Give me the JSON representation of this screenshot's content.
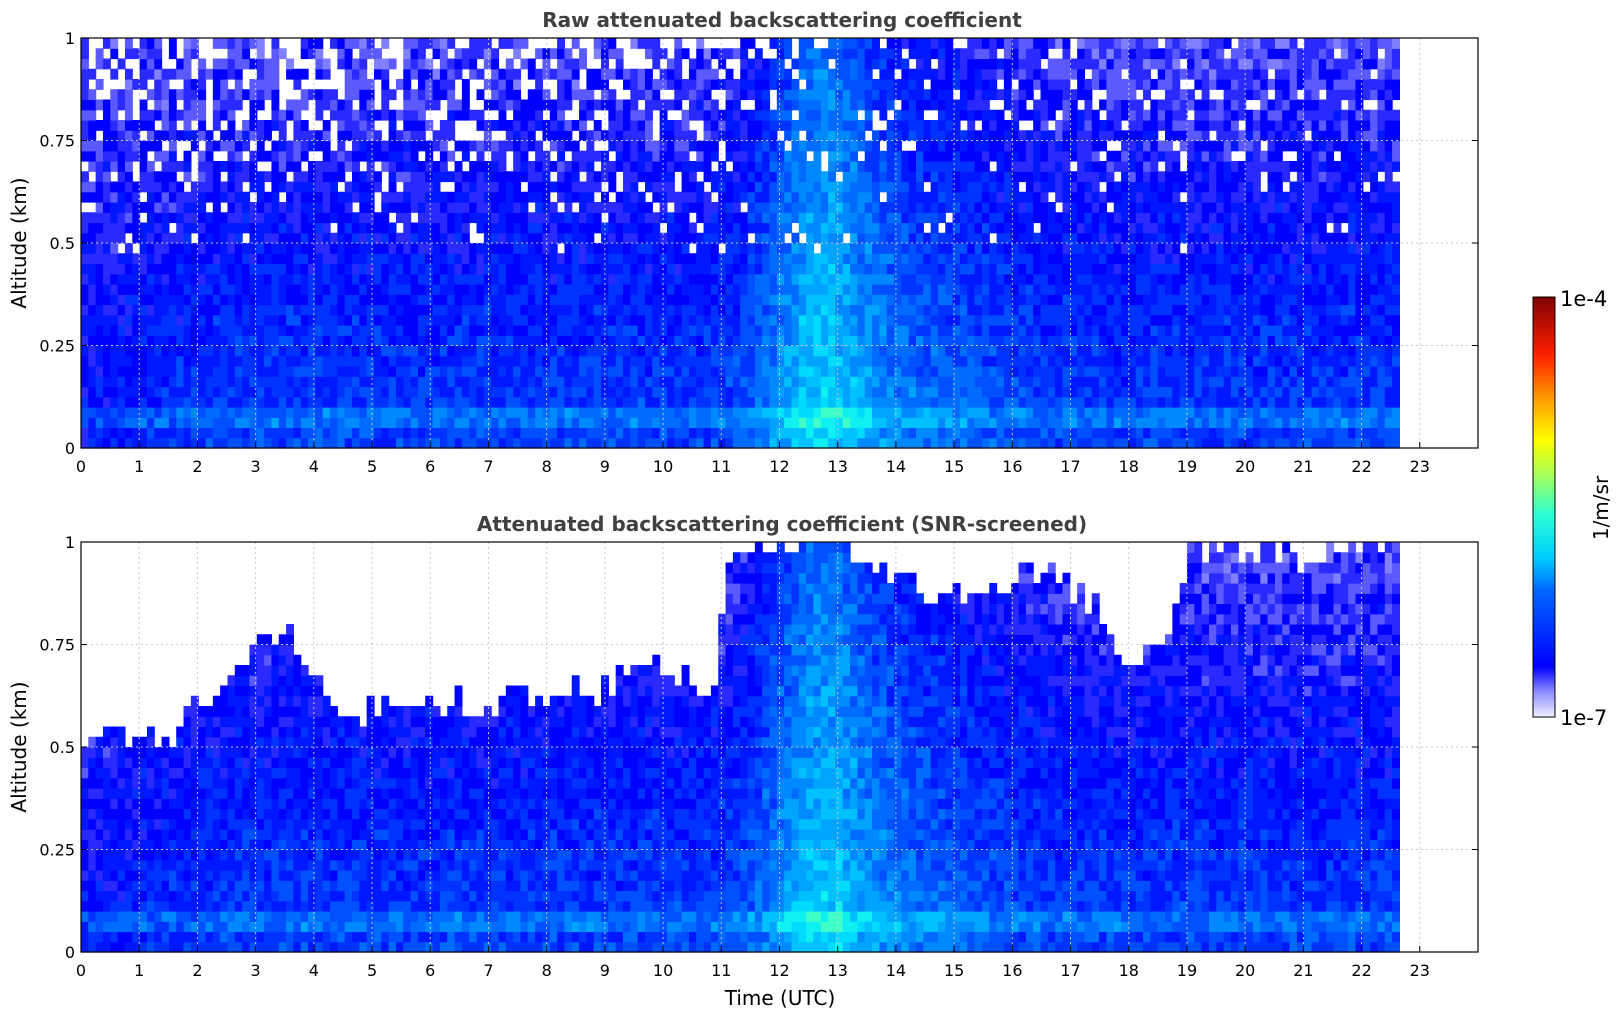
{
  "chart_data": [
    {
      "type": "heatmap",
      "title": "Raw attenuated backscattering coefficient",
      "xlabel": "",
      "ylabel": "Altitude (km)",
      "xlim": [
        0,
        24
      ],
      "ylim": [
        0,
        1
      ],
      "x_ticks": [
        "0",
        "1",
        "2",
        "3",
        "4",
        "5",
        "6",
        "7",
        "8",
        "9",
        "10",
        "11",
        "12",
        "13",
        "14",
        "15",
        "16",
        "17",
        "18",
        "19",
        "20",
        "21",
        "22",
        "23"
      ],
      "y_ticks": [
        "0",
        "0.25",
        "0.5",
        "0.75",
        "1"
      ],
      "data_end_time": 22.65,
      "screened": false,
      "grid": true
    },
    {
      "type": "heatmap",
      "title": "Attenuated backscattering coefficient (SNR-screened)",
      "xlabel": "Time (UTC)",
      "ylabel": "Altitude (km)",
      "xlim": [
        0,
        24
      ],
      "ylim": [
        0,
        1
      ],
      "x_ticks": [
        "0",
        "1",
        "2",
        "3",
        "4",
        "5",
        "6",
        "7",
        "8",
        "9",
        "10",
        "11",
        "12",
        "13",
        "14",
        "15",
        "16",
        "17",
        "18",
        "19",
        "20",
        "21",
        "22",
        "23"
      ],
      "y_ticks": [
        "0",
        "0.25",
        "0.5",
        "0.75",
        "1"
      ],
      "data_end_time": 22.65,
      "screened": true,
      "grid": true,
      "signal_top_km": [
        [
          0,
          0.52
        ],
        [
          0.5,
          0.55
        ],
        [
          1,
          0.5
        ],
        [
          1.5,
          0.52
        ],
        [
          2,
          0.6
        ],
        [
          2.5,
          0.65
        ],
        [
          3,
          0.72
        ],
        [
          3.5,
          0.75
        ],
        [
          4,
          0.68
        ],
        [
          4.5,
          0.55
        ],
        [
          5,
          0.6
        ],
        [
          6,
          0.58
        ],
        [
          7,
          0.6
        ],
        [
          8,
          0.62
        ],
        [
          9,
          0.64
        ],
        [
          10,
          0.7
        ],
        [
          10.8,
          0.6
        ],
        [
          11,
          0.95
        ],
        [
          12,
          1.0
        ],
        [
          13,
          0.98
        ],
        [
          14,
          0.9
        ],
        [
          15,
          0.85
        ],
        [
          16,
          0.92
        ],
        [
          17,
          0.88
        ],
        [
          17.5,
          0.8
        ],
        [
          18,
          0.7
        ],
        [
          18.5,
          0.75
        ],
        [
          19,
          0.95
        ],
        [
          20,
          0.98
        ],
        [
          21,
          0.95
        ],
        [
          22,
          1.0
        ],
        [
          22.65,
          1.0
        ]
      ]
    }
  ],
  "colorbar": {
    "label": "1/m/sr",
    "max_label": "1e-4",
    "min_label": "1e-7",
    "scale": "log",
    "range": [
      1e-07,
      0.0001
    ],
    "colormap": "jet"
  }
}
